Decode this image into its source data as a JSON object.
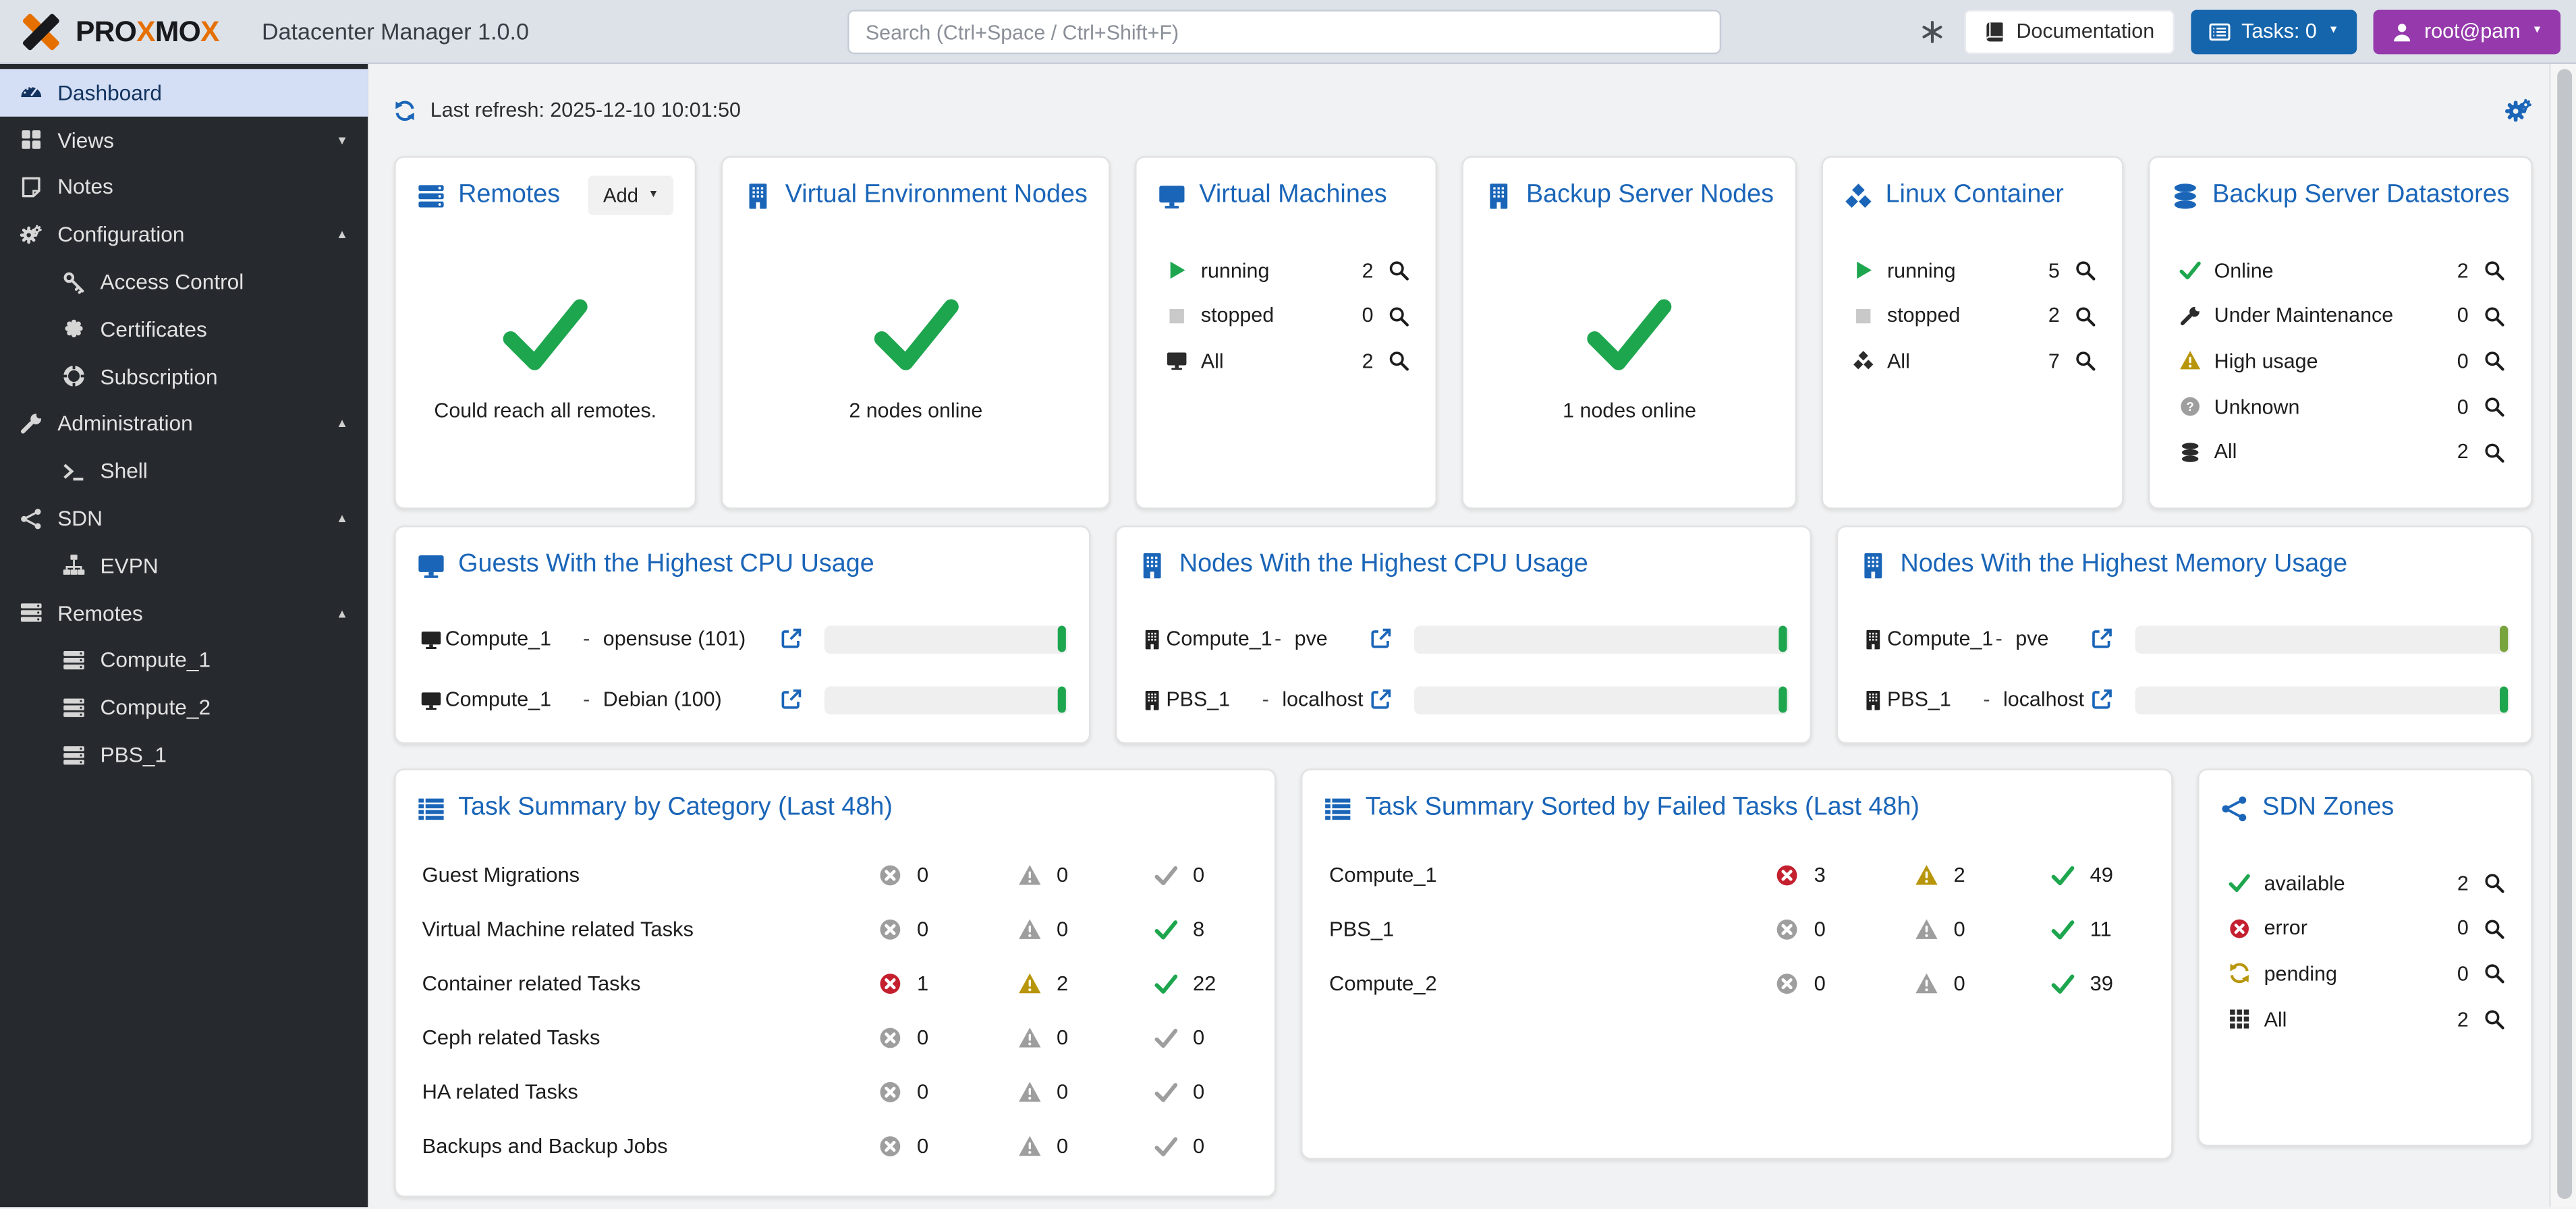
{
  "topbar": {
    "brand_segments": [
      {
        "text": "PRO",
        "orange": false
      },
      {
        "text": "X",
        "orange": true
      },
      {
        "text": "MO",
        "orange": false
      },
      {
        "text": "X",
        "orange": true
      }
    ],
    "app_title": "Datacenter Manager 1.0.0",
    "search_placeholder": "Search (Ctrl+Space / Ctrl+Shift+F)",
    "documentation_label": "Documentation",
    "tasks_label": "Tasks: 0",
    "user_label": "root@pam"
  },
  "sidebar": {
    "items": [
      {
        "label": "Dashboard",
        "icon": "gauge",
        "level": 0,
        "selected": true
      },
      {
        "label": "Views",
        "icon": "grid4",
        "level": 0,
        "chevron": "down"
      },
      {
        "label": "Notes",
        "icon": "note",
        "level": 0
      },
      {
        "label": "Configuration",
        "icon": "gears",
        "level": 0,
        "chevron": "up"
      },
      {
        "label": "Access Control",
        "icon": "key",
        "level": 1
      },
      {
        "label": "Certificates",
        "icon": "certificate",
        "level": 1
      },
      {
        "label": "Subscription",
        "icon": "lifering",
        "level": 1
      },
      {
        "label": "Administration",
        "icon": "wrench",
        "level": 0,
        "chevron": "up"
      },
      {
        "label": "Shell",
        "icon": "terminal",
        "level": 1
      },
      {
        "label": "SDN",
        "icon": "share",
        "level": 0,
        "chevron": "up"
      },
      {
        "label": "EVPN",
        "icon": "sitemap",
        "level": 1
      },
      {
        "label": "Remotes",
        "icon": "server",
        "level": 0,
        "chevron": "up"
      },
      {
        "label": "Compute_1",
        "icon": "server",
        "level": 1
      },
      {
        "label": "Compute_2",
        "icon": "server",
        "level": 1
      },
      {
        "label": "PBS_1",
        "icon": "server",
        "level": 1
      }
    ]
  },
  "refresh": {
    "label": "Last refresh: 2025-12-10 10:01:50"
  },
  "status_cards": [
    {
      "title": "Remotes",
      "icon": "server",
      "action_label": "Add",
      "type": "check",
      "message": "Could reach all remotes."
    },
    {
      "title": "Virtual Environment Nodes",
      "icon": "building",
      "type": "check",
      "message": "2 nodes online"
    },
    {
      "title": "Virtual Machines",
      "icon": "monitor",
      "type": "rows",
      "rows": [
        {
          "icon": "play",
          "color": "green",
          "label": "running",
          "count": 2
        },
        {
          "icon": "square",
          "color": "lightgray",
          "label": "stopped",
          "count": 0
        },
        {
          "icon": "monitor",
          "color": "dark",
          "label": "All",
          "count": 2
        }
      ]
    },
    {
      "title": "Backup Server Nodes",
      "icon": "building",
      "type": "check",
      "message": "1 nodes online"
    },
    {
      "title": "Linux Container",
      "icon": "cubes",
      "type": "rows",
      "rows": [
        {
          "icon": "play",
          "color": "green",
          "label": "running",
          "count": 5
        },
        {
          "icon": "square",
          "color": "lightgray",
          "label": "stopped",
          "count": 2
        },
        {
          "icon": "cubes",
          "color": "dark",
          "label": "All",
          "count": 7
        }
      ]
    },
    {
      "title": "Backup Server Datastores",
      "icon": "database",
      "type": "rows",
      "rows": [
        {
          "icon": "check",
          "color": "green",
          "label": "Online",
          "count": 2
        },
        {
          "icon": "wrench",
          "color": "dark",
          "label": "Under Maintenance",
          "count": 0
        },
        {
          "icon": "warn",
          "color": "yellow",
          "label": "High usage",
          "count": 0
        },
        {
          "icon": "qcircle",
          "color": "gray",
          "label": "Unknown",
          "count": 0
        },
        {
          "icon": "database",
          "color": "dark",
          "label": "All",
          "count": 2
        }
      ]
    }
  ],
  "usage_cards": [
    {
      "title": "Guests With the Highest CPU Usage",
      "icon": "monitor",
      "wide": true,
      "rows": [
        {
          "icon": "monitor",
          "name": "Compute_1",
          "separator": "-",
          "detail": "opensuse (101)",
          "cap_color": "#1ea64e"
        },
        {
          "icon": "monitor",
          "name": "Compute_1",
          "separator": "-",
          "detail": "Debian (100)",
          "cap_color": "#1ea64e"
        }
      ]
    },
    {
      "title": "Nodes With the Highest CPU Usage",
      "icon": "building",
      "wide": false,
      "rows": [
        {
          "icon": "building",
          "name": "Compute_1",
          "separator": "-",
          "detail": "pve",
          "cap_color": "#1ea64e"
        },
        {
          "icon": "building",
          "name": "PBS_1",
          "separator": "-",
          "detail": "localhost",
          "cap_color": "#1ea64e"
        }
      ]
    },
    {
      "title": "Nodes With the Highest Memory Usage",
      "icon": "building",
      "wide": false,
      "rows": [
        {
          "icon": "building",
          "name": "Compute_1",
          "separator": "-",
          "detail": "pve",
          "cap_color": "#79a33c"
        },
        {
          "icon": "building",
          "name": "PBS_1",
          "separator": "-",
          "detail": "localhost",
          "cap_color": "#1ea64e"
        }
      ]
    }
  ],
  "task_cards": [
    {
      "title": "Task Summary by Category (Last 48h)",
      "icon": "list",
      "rows": [
        {
          "label": "Guest Migrations",
          "error": 0,
          "warning": 0,
          "ok": 0
        },
        {
          "label": "Virtual Machine related Tasks",
          "error": 0,
          "warning": 0,
          "ok": 8
        },
        {
          "label": "Container related Tasks",
          "error": 1,
          "warning": 2,
          "ok": 22
        },
        {
          "label": "Ceph related Tasks",
          "error": 0,
          "warning": 0,
          "ok": 0
        },
        {
          "label": "HA related Tasks",
          "error": 0,
          "warning": 0,
          "ok": 0
        },
        {
          "label": "Backups and Backup Jobs",
          "error": 0,
          "warning": 0,
          "ok": 0
        }
      ]
    },
    {
      "title": "Task Summary Sorted by Failed Tasks (Last 48h)",
      "icon": "list",
      "rows": [
        {
          "label": "Compute_1",
          "error": 3,
          "warning": 2,
          "ok": 49
        },
        {
          "label": "PBS_1",
          "error": 0,
          "warning": 0,
          "ok": 11
        },
        {
          "label": "Compute_2",
          "error": 0,
          "warning": 0,
          "ok": 39
        }
      ]
    }
  ],
  "sdn_card": {
    "title": "SDN Zones",
    "icon": "share",
    "rows": [
      {
        "icon": "check",
        "color": "green",
        "label": "available",
        "count": 2
      },
      {
        "icon": "xcircle",
        "color": "red",
        "label": "error",
        "count": 0
      },
      {
        "icon": "refresh",
        "color": "yellow",
        "label": "pending",
        "count": 0
      },
      {
        "icon": "grid9",
        "color": "dark",
        "label": "All",
        "count": 2
      }
    ]
  },
  "colors": {
    "accent_blue": "#1a65b8",
    "green": "#1ea64e",
    "red": "#c4202f",
    "yellow": "#b8960c",
    "purple": "#9539ac",
    "tasks_blue": "#1565ad",
    "brand_orange": "#e57000",
    "memory_bar_green": "#79a33c",
    "sidebar_bg": "#26292d",
    "topbar_bg": "#dde2e9"
  }
}
